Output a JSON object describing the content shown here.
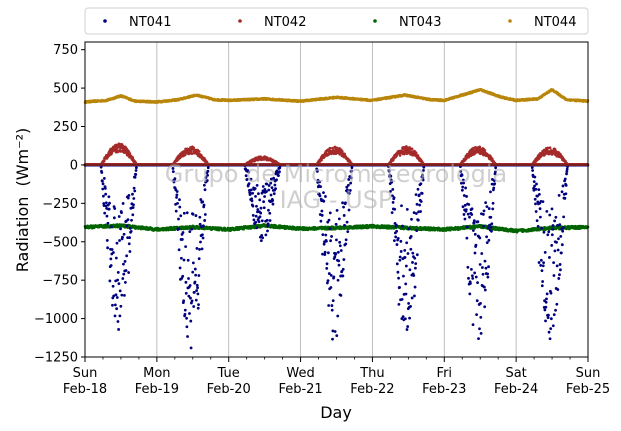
{
  "chart_data": {
    "type": "scatter",
    "ylabel": "Radiation",
    "ylabel_unit": "(Wm⁻²)",
    "xlabel": "Day",
    "ylim": [
      -1250,
      800
    ],
    "yticks": [
      -1250,
      -1000,
      -750,
      -500,
      -250,
      0,
      250,
      500,
      750
    ],
    "x_range_days": [
      0,
      7
    ],
    "x_ticks": [
      {
        "day": 0,
        "line1": "Sun",
        "line2": "Feb-18"
      },
      {
        "day": 1,
        "line1": "Mon",
        "line2": "Feb-19"
      },
      {
        "day": 2,
        "line1": "Tue",
        "line2": "Feb-20"
      },
      {
        "day": 3,
        "line1": "Wed",
        "line2": "Feb-21"
      },
      {
        "day": 4,
        "line1": "Thu",
        "line2": "Feb-22"
      },
      {
        "day": 5,
        "line1": "Fri",
        "line2": "Feb-23"
      },
      {
        "day": 6,
        "line1": "Sat",
        "line2": "Feb-24"
      },
      {
        "day": 7,
        "line1": "Sun",
        "line2": "Feb-25"
      }
    ],
    "grid": "vertical",
    "legend_placement": "top, outside, 4 columns",
    "watermark": [
      "Grupo de Micrometeorologia",
      "IAG - USP"
    ],
    "series": [
      {
        "name": "NT041",
        "color": "#00007f",
        "daily_min": [
          -1080,
          -1200,
          -500,
          -1150,
          -1140,
          -1150,
          -1140
        ],
        "daily_peak_hour": [
          0.45,
          0.45,
          0.42,
          0.45,
          0.45,
          0.45,
          0.45
        ]
      },
      {
        "name": "NT042",
        "color": "#a52a2a",
        "daily_max": [
          140,
          120,
          55,
          120,
          120,
          120,
          115
        ]
      },
      {
        "name": "NT043",
        "color": "#006400",
        "mean": -415,
        "samples": [
          {
            "day": 0.0,
            "value": -405
          },
          {
            "day": 0.5,
            "value": -395
          },
          {
            "day": 1.0,
            "value": -420
          },
          {
            "day": 1.5,
            "value": -405
          },
          {
            "day": 2.0,
            "value": -420
          },
          {
            "day": 2.5,
            "value": -395
          },
          {
            "day": 3.0,
            "value": -415
          },
          {
            "day": 3.5,
            "value": -410
          },
          {
            "day": 4.0,
            "value": -400
          },
          {
            "day": 4.5,
            "value": -410
          },
          {
            "day": 5.0,
            "value": -420
          },
          {
            "day": 5.5,
            "value": -400
          },
          {
            "day": 6.0,
            "value": -430
          },
          {
            "day": 6.5,
            "value": -410
          },
          {
            "day": 7.0,
            "value": -405
          }
        ]
      },
      {
        "name": "NT044",
        "color": "#b8860b",
        "samples": [
          {
            "day": 0.0,
            "value": 410
          },
          {
            "day": 0.3,
            "value": 420
          },
          {
            "day": 0.5,
            "value": 450
          },
          {
            "day": 0.7,
            "value": 415
          },
          {
            "day": 1.0,
            "value": 410
          },
          {
            "day": 1.3,
            "value": 425
          },
          {
            "day": 1.55,
            "value": 455
          },
          {
            "day": 1.8,
            "value": 425
          },
          {
            "day": 2.0,
            "value": 420
          },
          {
            "day": 2.5,
            "value": 430
          },
          {
            "day": 3.0,
            "value": 415
          },
          {
            "day": 3.5,
            "value": 440
          },
          {
            "day": 4.0,
            "value": 420
          },
          {
            "day": 4.45,
            "value": 455
          },
          {
            "day": 4.8,
            "value": 425
          },
          {
            "day": 5.0,
            "value": 420
          },
          {
            "day": 5.5,
            "value": 490
          },
          {
            "day": 5.8,
            "value": 440
          },
          {
            "day": 6.0,
            "value": 420
          },
          {
            "day": 6.3,
            "value": 430
          },
          {
            "day": 6.5,
            "value": 490
          },
          {
            "day": 6.7,
            "value": 425
          },
          {
            "day": 7.0,
            "value": 415
          }
        ]
      }
    ]
  }
}
